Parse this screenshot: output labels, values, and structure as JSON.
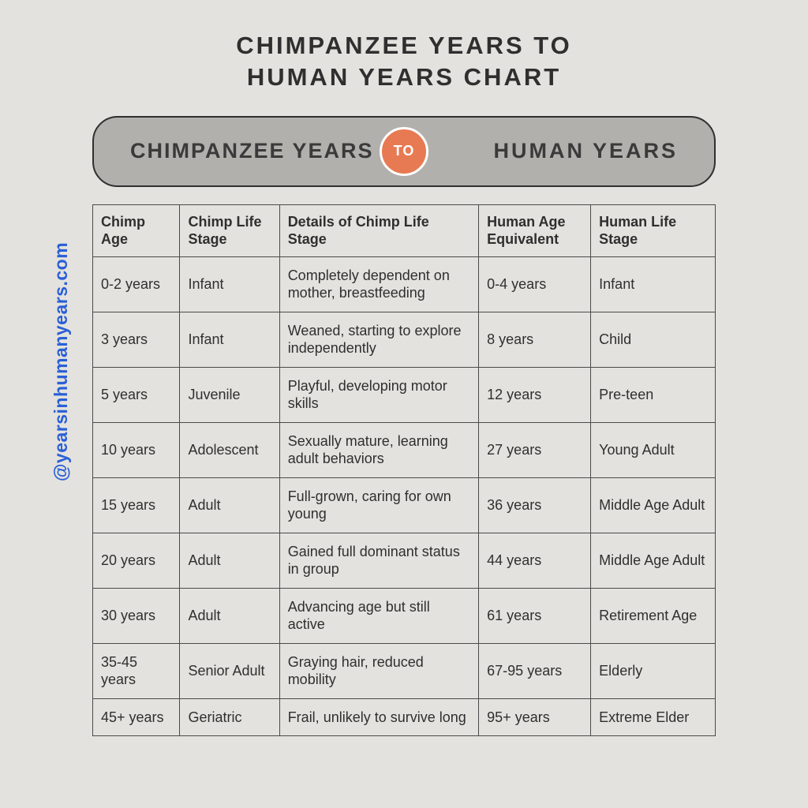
{
  "title_line1": "CHIMPANZEE YEARS TO",
  "title_line2": "HUMAN YEARS CHART",
  "pill": {
    "left": "CHIMPANZEE YEARS",
    "center": "TO",
    "right": "HUMAN YEARS"
  },
  "watermark": "@yearsinhumanyears.com",
  "colors": {
    "background": "#e3e2de",
    "pill_bg": "#b1b0ad",
    "pill_border": "#2f2f2f",
    "circle_bg": "#e77a52",
    "circle_border": "#ffffff",
    "circle_text": "#ffffff",
    "text": "#2f2f2f",
    "table_border": "#4a4a4a",
    "watermark": "#2a5fd6"
  },
  "table": {
    "columns": [
      "Chimp Age",
      "Chimp Life Stage",
      "Details of Chimp Life Stage",
      "Human Age Equivalent",
      "Human Life Stage"
    ],
    "rows": [
      [
        "0-2 years",
        "Infant",
        "Completely dependent on mother, breastfeeding",
        "0-4 years",
        "Infant"
      ],
      [
        "3 years",
        "Infant",
        "Weaned, starting to explore independently",
        "8 years",
        "Child"
      ],
      [
        "5 years",
        "Juvenile",
        "Playful, developing motor skills",
        "12 years",
        "Pre-teen"
      ],
      [
        "10 years",
        "Adolescent",
        "Sexually mature, learning adult behaviors",
        "27 years",
        "Young Adult"
      ],
      [
        "15 years",
        "Adult",
        "Full-grown, caring for own young",
        "36 years",
        "Middle Age Adult"
      ],
      [
        "20 years",
        "Adult",
        "Gained full dominant status in group",
        "44 years",
        "Middle Age Adult"
      ],
      [
        "30 years",
        "Adult",
        "Advancing age but still active",
        "61 years",
        "Retirement Age"
      ],
      [
        "35-45 years",
        "Senior Adult",
        "Graying hair, reduced mobility",
        "67-95 years",
        "Elderly"
      ],
      [
        "45+ years",
        "Geriatric",
        "Frail, unlikely to survive long",
        "95+ years",
        "Extreme Elder"
      ]
    ]
  }
}
